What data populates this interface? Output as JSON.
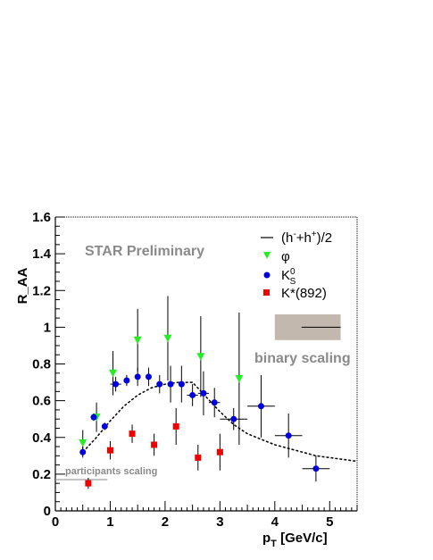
{
  "chart_data": {
    "type": "scatter",
    "xlabel": {
      "main": "p",
      "sub": "T",
      "rest": " [GeV/c]"
    },
    "ylabel": "R_AA",
    "xlim": [
      0,
      5.5
    ],
    "ylim": [
      0,
      1.6
    ],
    "x_ticks": [
      "0",
      "1",
      "2",
      "3",
      "4",
      "5"
    ],
    "y_ticks": [
      "0",
      "0.2",
      "0.4",
      "0.6",
      "0.8",
      "1",
      "1.2",
      "1.4",
      "1.6"
    ],
    "grid": false,
    "legend_placement": "top-right",
    "annotations": {
      "preliminary": "STAR Preliminary",
      "binary": "binary scaling",
      "participants": "participants scaling"
    },
    "participants_band": {
      "x": [
        0,
        0.95
      ],
      "y": 0.17
    },
    "binary_band": {
      "x": [
        4,
        5.2
      ],
      "y": 1.0,
      "y_low": 0.93,
      "y_high": 1.07,
      "color": "#c3b8ae"
    },
    "legend": [
      {
        "marker": "line",
        "label_parts": [
          "(h",
          "-",
          "+h",
          "+",
          ")/2"
        ]
      },
      {
        "marker": "triangle-down",
        "color": "#22ee22",
        "label": "φ"
      },
      {
        "marker": "circle",
        "color": "#0000dd",
        "label_parts": [
          "K",
          "0",
          "S"
        ]
      },
      {
        "marker": "square",
        "color": "#ee0000",
        "label": "K*(892)"
      }
    ],
    "series": [
      {
        "name": "(h-+h+)/2",
        "style": "dashed-line",
        "color": "#000000",
        "x": [
          0.5,
          0.75,
          1.0,
          1.25,
          1.5,
          1.75,
          2.0,
          2.25,
          2.5,
          2.75,
          3.0,
          3.25,
          3.5,
          3.75,
          4.0,
          4.25,
          4.5,
          4.75,
          5.0,
          5.25,
          5.5
        ],
        "y": [
          0.32,
          0.4,
          0.49,
          0.57,
          0.63,
          0.67,
          0.69,
          0.7,
          0.7,
          0.62,
          0.54,
          0.47,
          0.42,
          0.39,
          0.36,
          0.34,
          0.32,
          0.3,
          0.29,
          0.28,
          0.27
        ]
      },
      {
        "name": "φ",
        "marker": "triangle-down",
        "color": "#22ee22",
        "points": [
          {
            "x": 0.5,
            "y": 0.37,
            "err": 0.07
          },
          {
            "x": 0.75,
            "y": 0.51,
            "err": 0.08
          },
          {
            "x": 1.05,
            "y": 0.75,
            "err": 0.12
          },
          {
            "x": 1.5,
            "y": 0.93,
            "err": 0.17
          },
          {
            "x": 2.05,
            "y": 0.94,
            "err": 0.23
          },
          {
            "x": 2.65,
            "y": 0.84,
            "err": 0.22
          },
          {
            "x": 3.35,
            "y": 0.72,
            "err": 0.36
          }
        ]
      },
      {
        "name": "K0S",
        "marker": "circle",
        "color": "#0000dd",
        "points": [
          {
            "x": 0.5,
            "y": 0.32,
            "err": 0.03,
            "xerr": 0.05
          },
          {
            "x": 0.7,
            "y": 0.51,
            "err": 0.02,
            "xerr": 0.05
          },
          {
            "x": 0.9,
            "y": 0.46,
            "err": 0.02,
            "xerr": 0.05
          },
          {
            "x": 1.1,
            "y": 0.69,
            "err": 0.04,
            "xerr": 0.1
          },
          {
            "x": 1.3,
            "y": 0.71,
            "err": 0.03,
            "xerr": 0.05
          },
          {
            "x": 1.5,
            "y": 0.73,
            "err": 0.05,
            "xerr": 0.05
          },
          {
            "x": 1.7,
            "y": 0.73,
            "err": 0.05,
            "xerr": 0.05
          },
          {
            "x": 1.9,
            "y": 0.69,
            "err": 0.05,
            "xerr": 0.05
          },
          {
            "x": 2.1,
            "y": 0.69,
            "err": 0.1,
            "xerr": 0.05
          },
          {
            "x": 2.3,
            "y": 0.69,
            "err": 0.1,
            "xerr": 0.05
          },
          {
            "x": 2.5,
            "y": 0.63,
            "err": 0.06,
            "xerr": 0.1
          },
          {
            "x": 2.7,
            "y": 0.64,
            "err": 0.12,
            "xerr": 0.1
          },
          {
            "x": 2.9,
            "y": 0.59,
            "err": 0.08,
            "xerr": 0.1
          },
          {
            "x": 3.25,
            "y": 0.5,
            "err": 0.06,
            "xerr": 0.25
          },
          {
            "x": 3.75,
            "y": 0.57,
            "err": 0.17,
            "xerr": 0.25
          },
          {
            "x": 4.25,
            "y": 0.41,
            "err": 0.12,
            "xerr": 0.25
          },
          {
            "x": 4.75,
            "y": 0.23,
            "err": 0.07,
            "xerr": 0.25
          }
        ]
      },
      {
        "name": "K*(892)",
        "marker": "square",
        "color": "#ee0000",
        "points": [
          {
            "x": 0.6,
            "y": 0.15,
            "err": 0.03
          },
          {
            "x": 1.0,
            "y": 0.33,
            "err": 0.05
          },
          {
            "x": 1.4,
            "y": 0.42,
            "err": 0.05
          },
          {
            "x": 1.8,
            "y": 0.36,
            "err": 0.06
          },
          {
            "x": 2.2,
            "y": 0.46,
            "err": 0.1
          },
          {
            "x": 2.6,
            "y": 0.29,
            "err": 0.07
          },
          {
            "x": 3.0,
            "y": 0.32,
            "err": 0.1
          }
        ]
      }
    ]
  }
}
